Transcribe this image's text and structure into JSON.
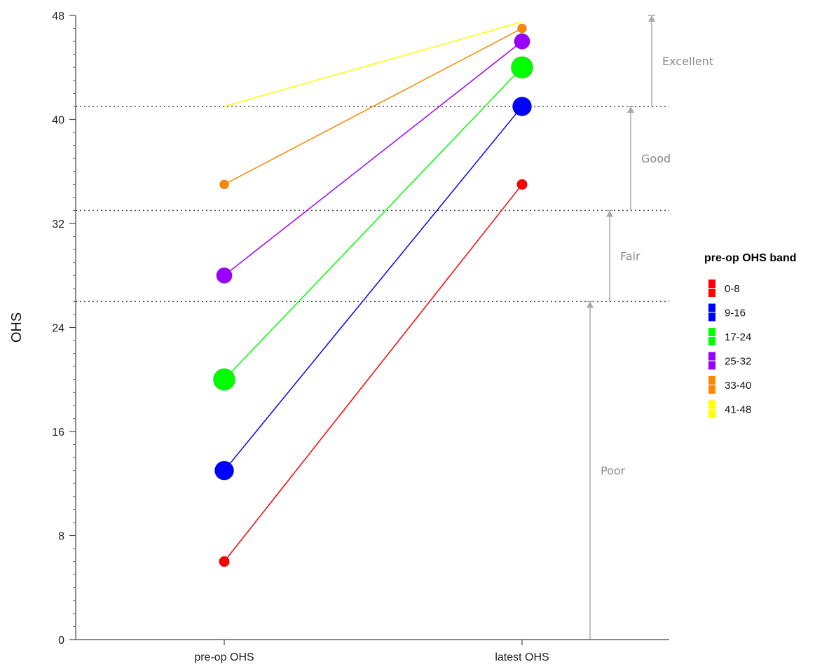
{
  "chart_data": {
    "type": "line",
    "x": [
      "pre-op OHS",
      "latest OHS"
    ],
    "ylabel": "OHS",
    "ylim": [
      0,
      48
    ],
    "yticks": [
      0,
      8,
      16,
      24,
      32,
      40,
      48
    ],
    "series": [
      {
        "name": "0-8",
        "color": "#ff0000",
        "values": [
          6,
          35
        ],
        "marker_scale": [
          0.35,
          0.35
        ]
      },
      {
        "name": "9-16",
        "color": "#0000ff",
        "values": [
          13,
          41
        ],
        "marker_scale": [
          1.0,
          1.0
        ]
      },
      {
        "name": "17-24",
        "color": "#00ff00",
        "values": [
          20,
          44
        ],
        "marker_scale": [
          1.2,
          1.2
        ]
      },
      {
        "name": "25-32",
        "color": "#9900ff",
        "values": [
          28,
          46
        ],
        "marker_scale": [
          0.75,
          0.75
        ]
      },
      {
        "name": "33-40",
        "color": "#ff8800",
        "values": [
          35,
          47
        ],
        "marker_scale": [
          0.25,
          0.25
        ]
      },
      {
        "name": "41-48",
        "color": "#ffff00",
        "values": [
          41,
          47.5
        ],
        "marker_scale": [
          0,
          0
        ]
      }
    ],
    "thresholds": [
      26,
      33,
      41
    ],
    "bands": [
      {
        "label": "Poor",
        "from": 0,
        "to": 26
      },
      {
        "label": "Fair",
        "from": 26,
        "to": 33
      },
      {
        "label": "Good",
        "from": 33,
        "to": 41
      },
      {
        "label": "Excellent",
        "from": 41,
        "to": 48
      }
    ],
    "legend": {
      "title": "pre-op OHS band",
      "placement": "right"
    }
  }
}
